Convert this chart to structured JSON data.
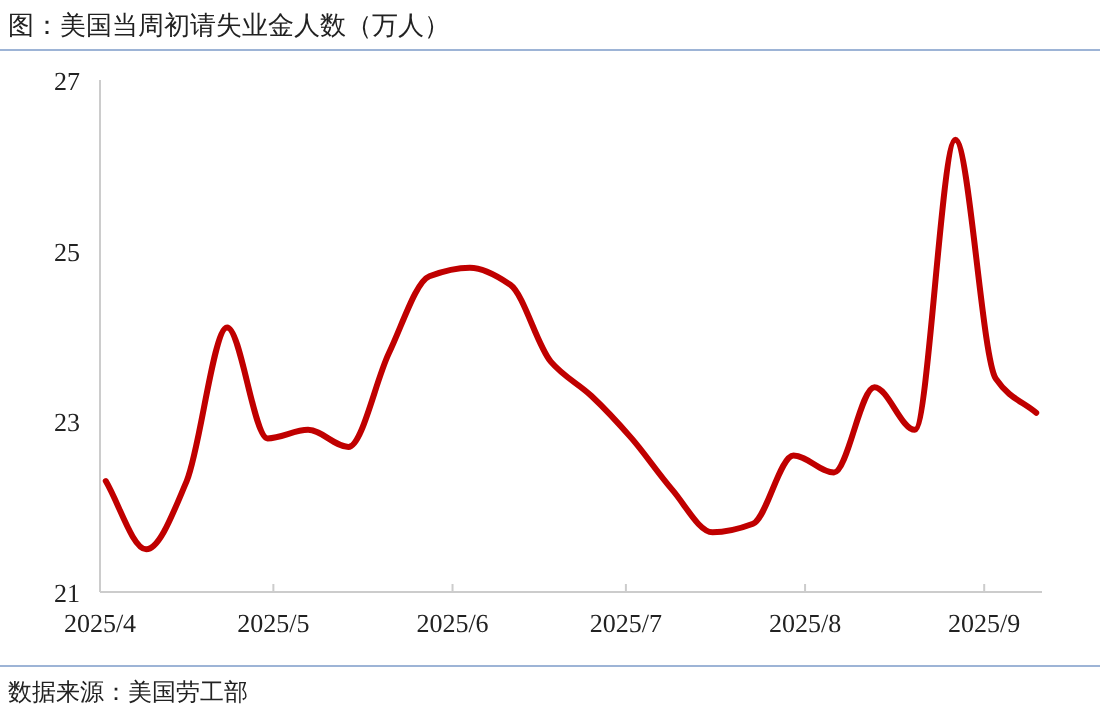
{
  "chart_data": {
    "type": "line",
    "title": "图：美国当周初请失业金人数（万人）",
    "annotations": [
      "数据来源：美国劳工部"
    ],
    "x": [
      "2025-04-02",
      "2025-04-09",
      "2025-04-16",
      "2025-04-23",
      "2025-04-30",
      "2025-05-07",
      "2025-05-14",
      "2025-05-21",
      "2025-05-28",
      "2025-06-04",
      "2025-06-11",
      "2025-06-18",
      "2025-06-25",
      "2025-07-02",
      "2025-07-09",
      "2025-07-16",
      "2025-07-23",
      "2025-07-30",
      "2025-08-06",
      "2025-08-13",
      "2025-08-20",
      "2025-08-27",
      "2025-09-03",
      "2025-09-10"
    ],
    "series": [
      {
        "color": "#c00000",
        "values": [
          22.3,
          21.5,
          22.3,
          24.1,
          22.8,
          22.9,
          22.7,
          23.8,
          24.7,
          24.8,
          24.6,
          23.7,
          23.3,
          22.8,
          22.2,
          21.7,
          21.8,
          22.6,
          22.4,
          23.4,
          22.9,
          26.3,
          23.5,
          23.1
        ]
      }
    ],
    "xlim": [
      "2025-04-01",
      "2025-09-11"
    ],
    "xticks": [
      {
        "value": "2025-04-01",
        "label": "2025/4"
      },
      {
        "value": "2025-05-01",
        "label": "2025/5"
      },
      {
        "value": "2025-06-01",
        "label": "2025/6"
      },
      {
        "value": "2025-07-01",
        "label": "2025/7"
      },
      {
        "value": "2025-08-01",
        "label": "2025/8"
      },
      {
        "value": "2025-09-01",
        "label": "2025/9"
      }
    ],
    "ylim": [
      21,
      27
    ],
    "yticks": [
      21,
      23,
      25,
      27
    ],
    "grid": false,
    "marker": "none",
    "line_style": "solid"
  }
}
